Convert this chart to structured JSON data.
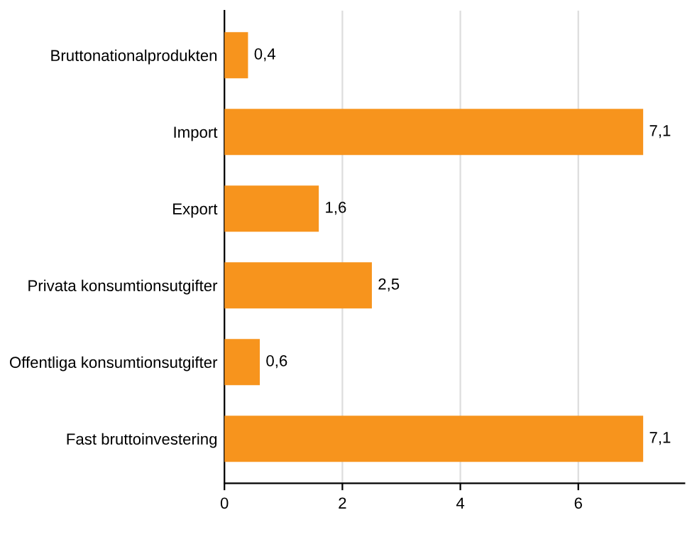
{
  "chart_data": {
    "type": "bar",
    "orientation": "horizontal",
    "categories": [
      "Bruttonationalprodukten",
      "Import",
      "Export",
      "Privata konsumtionsutgifter",
      "Offentliga konsumtionsutgifter",
      "Fast bruttoinvestering"
    ],
    "values": [
      0.4,
      7.1,
      1.6,
      2.5,
      0.6,
      7.1
    ],
    "value_labels": [
      "0,4",
      "7,1",
      "1,6",
      "2,5",
      "0,6",
      "7,1"
    ],
    "color": "#f7941d",
    "xlim": [
      0,
      7.8
    ],
    "xticks": [
      0,
      2,
      4,
      6
    ],
    "grid": "x",
    "legend": false
  }
}
